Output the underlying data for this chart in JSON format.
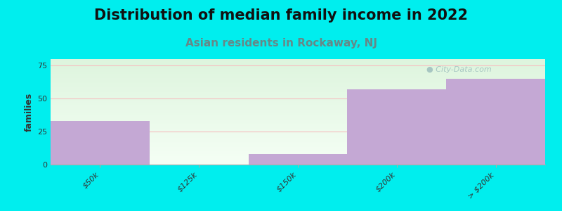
{
  "title": "Distribution of median family income in 2022",
  "subtitle": "Asian residents in Rockaway, NJ",
  "categories": [
    "$50k",
    "$125k",
    "$150k",
    "$200k",
    "> $200k"
  ],
  "values": [
    33,
    0,
    8,
    57,
    65
  ],
  "bar_color": "#c4a8d4",
  "background_color": "#00eeee",
  "plot_bg_top": "#e8f5e9",
  "plot_bg_bottom": "#f5fff5",
  "ylabel": "families",
  "ylim": [
    0,
    80
  ],
  "yticks": [
    0,
    25,
    50,
    75
  ],
  "title_fontsize": 15,
  "subtitle_fontsize": 11,
  "subtitle_color": "#668888",
  "grid_color": "#f5c0c0",
  "watermark": "City-Data.com",
  "watermark_color": "#99bbbb",
  "tick_label_fontsize": 8,
  "ylabel_fontsize": 9
}
